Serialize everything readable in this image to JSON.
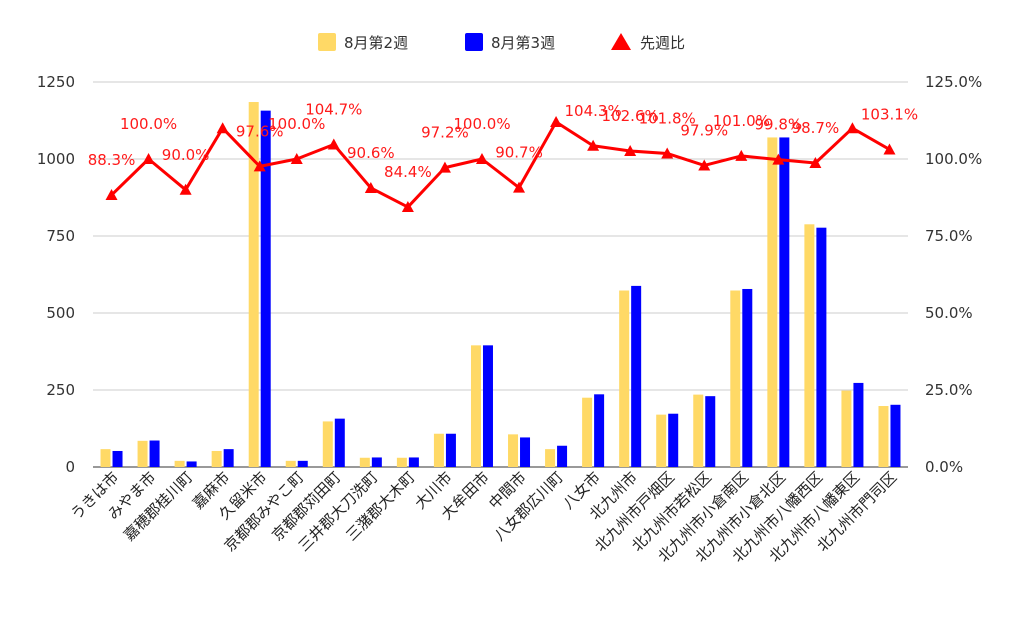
{
  "chart_data": {
    "type": "bar",
    "categories": [
      "うきは市",
      "みやま市",
      "嘉穂郡桂川町",
      "嘉麻市",
      "久留米市",
      "京都郡みやこ町",
      "京都郡苅田町",
      "三井郡大刀洗町",
      "三潴郡大木町",
      "大川市",
      "大牟田市",
      "中間市",
      "八女郡広川町",
      "八女市",
      "北九州市",
      "北九州市戸畑区",
      "北九州市若松区",
      "北九州市小倉南区",
      "北九州市小倉北区",
      "北九州市八幡西区",
      "北九州市八幡東区",
      "北九州市門司区"
    ],
    "series": [
      {
        "name": "8月第2週",
        "type": "bar",
        "color": "#ffd966",
        "values": [
          58,
          85,
          20,
          52,
          1185,
          20,
          148,
          30,
          30,
          108,
          395,
          106,
          58,
          225,
          573,
          170,
          235,
          573,
          1070,
          788,
          248,
          198
        ]
      },
      {
        "name": "8月第3週",
        "type": "bar",
        "color": "#0000ff",
        "values": [
          52,
          86,
          18,
          58,
          1157,
          20,
          157,
          31,
          31,
          108,
          395,
          96,
          69,
          236,
          588,
          173,
          230,
          578,
          1070,
          777,
          273,
          202
        ]
      },
      {
        "name": "先週比",
        "type": "line",
        "color": "#ff0000",
        "axis": "right",
        "values": [
          88.3,
          100.0,
          90.0,
          110.0,
          97.6,
          100.0,
          104.7,
          90.6,
          84.4,
          97.2,
          100.0,
          90.7,
          112.0,
          104.3,
          102.6,
          101.8,
          97.9,
          101.0,
          99.8,
          98.7,
          110.0,
          103.1
        ],
        "labels": [
          "88.3%",
          "100.0%",
          "90.0%",
          "",
          "97.6%",
          "100.0%",
          "104.7%",
          "90.6%",
          "84.4%",
          "97.2%",
          "100.0%",
          "90.7%",
          "",
          "104.3%",
          "102.6%",
          "101.8%",
          "97.9%",
          "101.0%",
          "99.8%",
          "98.7%",
          "",
          "103.1%"
        ]
      }
    ],
    "y_left": {
      "min": 0,
      "max": 1250,
      "ticks": [
        "0",
        "250",
        "500",
        "750",
        "1000",
        "1250"
      ]
    },
    "y_right": {
      "min": 0,
      "max": 125,
      "ticks": [
        "0.0%",
        "25.0%",
        "50.0%",
        "75.0%",
        "100.0%",
        "125.0%"
      ]
    },
    "grid": true,
    "legend_position": "top-center"
  }
}
